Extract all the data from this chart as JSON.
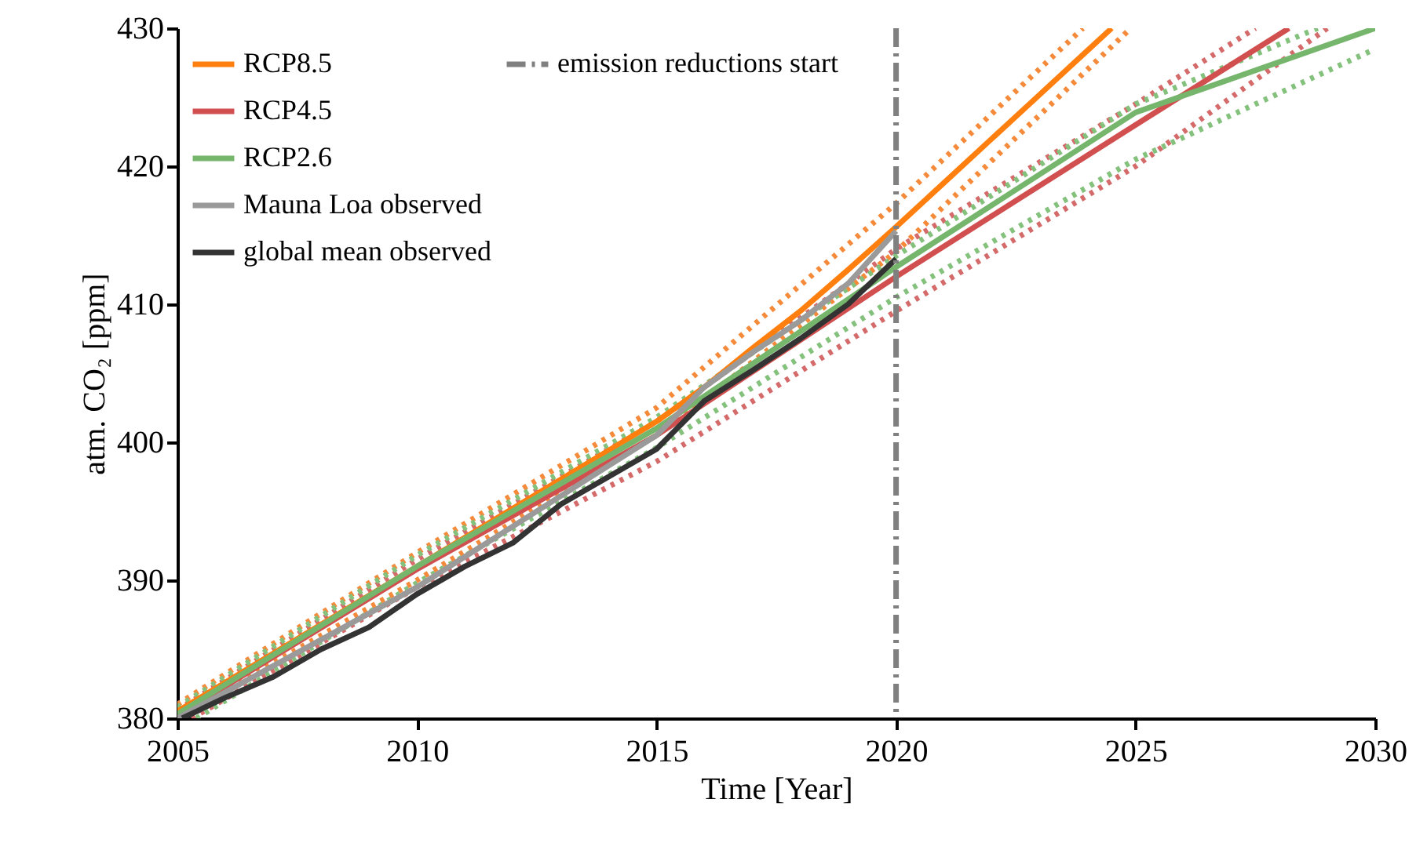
{
  "chart_data": {
    "type": "line",
    "xlabel": "Time [Year]",
    "ylabel": "atm. CO₂ [ppm]",
    "xlim": [
      2005,
      2030
    ],
    "ylim": [
      380,
      430
    ],
    "xticks": [
      2005,
      2010,
      2015,
      2020,
      2025,
      2030
    ],
    "yticks": [
      380,
      390,
      400,
      410,
      420,
      430
    ],
    "grid": false,
    "legend": "top left",
    "marker": "none",
    "series": [
      {
        "color": "#f58a3a",
        "line_style": "dotted",
        "x": [
          2005,
          2010,
          2015,
          2020,
          2023.9
        ],
        "values": [
          381.0,
          392.0,
          402.5,
          417.3,
          430
        ]
      },
      {
        "color": "#f58a3a",
        "line_style": "dotted",
        "x": [
          2005,
          2010,
          2015,
          2020,
          2024.9
        ],
        "values": [
          380.0,
          390.0,
          400.5,
          413.8,
          430
        ]
      },
      {
        "color": "#d46a6a",
        "line_style": "dotted",
        "x": [
          2005,
          2010,
          2015,
          2020,
          2025,
          2027.5
        ],
        "values": [
          380.6,
          391.5,
          401.5,
          414.0,
          424.5,
          430
        ]
      },
      {
        "color": "#d46a6a",
        "line_style": "dotted",
        "x": [
          2005.3,
          2010,
          2015,
          2020,
          2025,
          2029.0
        ],
        "values": [
          380.0,
          389.5,
          398.6,
          409.5,
          420.0,
          430
        ]
      },
      {
        "color": "#84c17c",
        "line_style": "dotted",
        "x": [
          2005,
          2010,
          2015,
          2020,
          2025,
          2028.8
        ],
        "values": [
          380.8,
          391.8,
          401.8,
          413.5,
          424.5,
          430
        ]
      },
      {
        "color": "#84c17c",
        "line_style": "dotted",
        "x": [
          2005.4,
          2010,
          2015,
          2020,
          2025,
          2030
        ],
        "values": [
          380.0,
          389.8,
          399.6,
          410.5,
          420.5,
          428.5
        ]
      },
      {
        "name": "RCP8.5",
        "color": "#ff7f0e",
        "line_style": "solid",
        "x": [
          2005,
          2010,
          2015,
          2016,
          2017,
          2018,
          2019,
          2020,
          2021,
          2022,
          2023,
          2024,
          2024.5
        ],
        "values": [
          380.5,
          391.0,
          401.5,
          404.0,
          406.8,
          409.5,
          412.5,
          415.6,
          418.8,
          422.0,
          425.2,
          428.4,
          430
        ]
      },
      {
        "name": "RCP4.5",
        "color": "#d1504f",
        "line_style": "solid",
        "x": [
          2005,
          2010,
          2015,
          2020,
          2025,
          2028.2
        ],
        "values": [
          380.2,
          390.8,
          400.5,
          412.0,
          423.0,
          430
        ]
      },
      {
        "name": "RCP2.6",
        "color": "#76b56c",
        "line_style": "solid",
        "x": [
          2005,
          2010,
          2015,
          2020,
          2025,
          2030
        ],
        "values": [
          380.3,
          391.0,
          401.0,
          412.7,
          423.9,
          430
        ]
      },
      {
        "name": "Mauna Loa observed",
        "color": "#9a9a9a",
        "line_style": "solid",
        "x": [
          2005,
          2010,
          2015,
          2016,
          2017,
          2018,
          2019,
          2020
        ],
        "values": [
          380.0,
          389.5,
          400.5,
          404.0,
          406.5,
          408.8,
          411.5,
          415.3
        ]
      },
      {
        "name": "global mean observed",
        "color": "#333333",
        "line_style": "solid",
        "x": [
          2005.1,
          2006,
          2007,
          2008,
          2009,
          2010,
          2011,
          2012,
          2013,
          2014,
          2015,
          2016,
          2017,
          2018,
          2019,
          2020
        ],
        "values": [
          380.0,
          381.5,
          383.0,
          385.0,
          386.6,
          389.0,
          391.0,
          392.7,
          395.5,
          397.5,
          399.5,
          403.0,
          405.2,
          407.5,
          410.0,
          413.3
        ]
      }
    ],
    "ref_lines": [
      {
        "axis": "x",
        "value": 2020,
        "label": "emission reductions start",
        "color": "#808080",
        "line_style": "dashdot"
      }
    ]
  }
}
